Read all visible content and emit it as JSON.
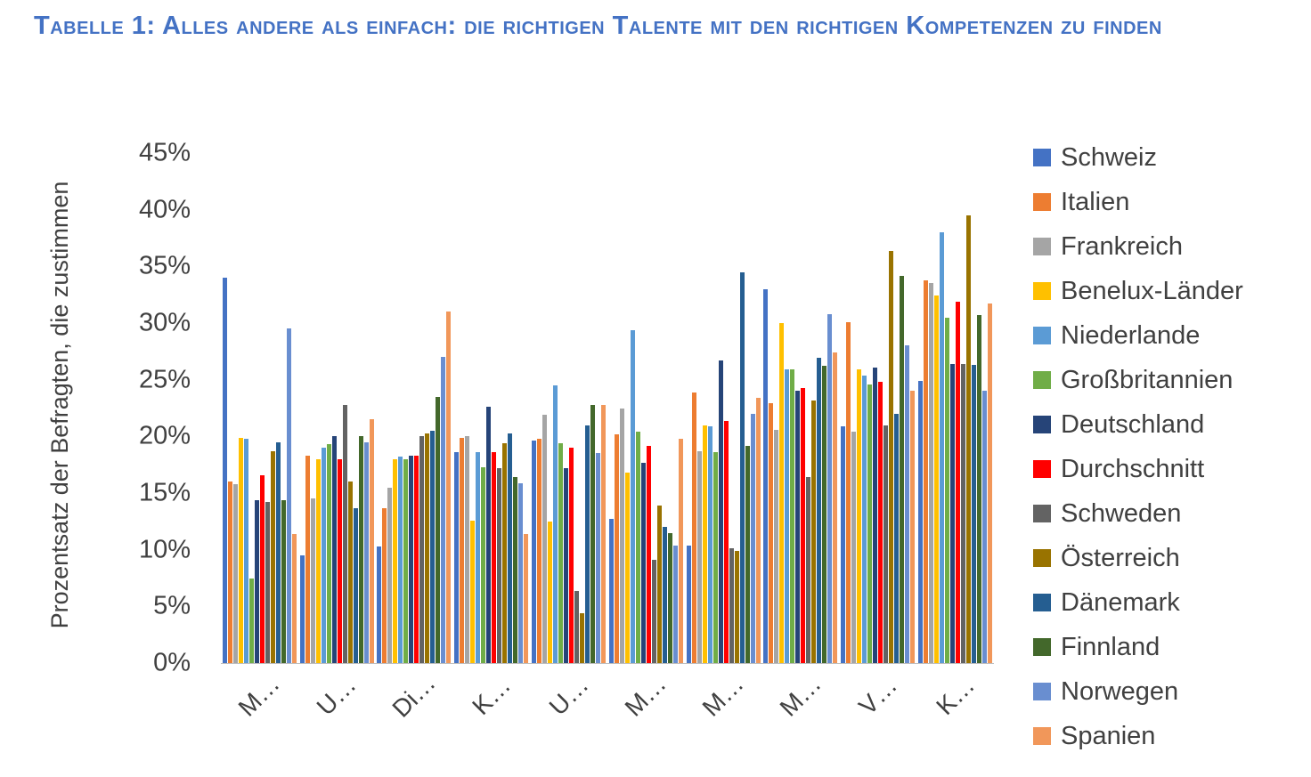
{
  "page_title": "Tabelle 1: Alles andere als einfach: die richtigen Talente mit den richtigen Kompetenzen zu finden",
  "chart_data": {
    "type": "bar",
    "title": "Tabelle 1: Alles andere als einfach: die richtigen Talente mit den richtigen Kompetenzen zu finden",
    "xlabel": "",
    "ylabel": "Prozentsatz der Befragten, die zustimmen",
    "ylim": [
      0,
      45
    ],
    "ytick_step": 5,
    "ytick_suffix": "%",
    "grid": false,
    "legend_position": "right",
    "categories": [
      "M…",
      "U…",
      "Di…",
      "K…",
      "U…",
      "M…",
      "M…",
      "M…",
      "V…",
      "K…"
    ],
    "series": [
      {
        "name": "Schweiz",
        "color": "#4472C4",
        "values": [
          34.0,
          9.5,
          10.3,
          18.6,
          19.6,
          12.7,
          10.4,
          33.0,
          20.9,
          24.9
        ]
      },
      {
        "name": "Italien",
        "color": "#ED7D31",
        "values": [
          16.0,
          18.3,
          13.7,
          19.9,
          19.8,
          20.2,
          23.9,
          22.9,
          30.1,
          33.8
        ]
      },
      {
        "name": "Frankreich",
        "color": "#A5A5A5",
        "values": [
          15.8,
          14.5,
          15.5,
          20.0,
          21.9,
          22.5,
          18.7,
          20.6,
          20.4,
          33.5
        ]
      },
      {
        "name": "Benelux-Länder",
        "color": "#FFC000",
        "values": [
          19.9,
          18.0,
          18.0,
          12.6,
          12.5,
          16.8,
          21.0,
          30.0,
          25.9,
          32.4
        ]
      },
      {
        "name": "Niederlande",
        "color": "#5B9BD5",
        "values": [
          19.8,
          19.0,
          18.2,
          18.6,
          24.5,
          29.4,
          20.9,
          25.9,
          25.4,
          38.0
        ]
      },
      {
        "name": "Großbritannien",
        "color": "#70AD47",
        "values": [
          7.5,
          19.3,
          18.0,
          17.3,
          19.4,
          20.4,
          18.6,
          25.9,
          24.6,
          30.5
        ]
      },
      {
        "name": "Deutschland",
        "color": "#264478",
        "values": [
          14.4,
          20.0,
          18.3,
          22.6,
          17.2,
          17.7,
          26.7,
          24.0,
          26.1,
          26.4
        ]
      },
      {
        "name": "Durchschnitt",
        "color": "#FF0000",
        "values": [
          16.6,
          18.0,
          18.3,
          18.6,
          19.0,
          19.2,
          21.4,
          24.3,
          24.8,
          31.9
        ]
      },
      {
        "name": "Schweden",
        "color": "#636363",
        "values": [
          14.2,
          22.8,
          20.0,
          17.2,
          6.4,
          9.1,
          10.1,
          16.4,
          21.0,
          26.4
        ]
      },
      {
        "name": "Österreich",
        "color": "#997300",
        "values": [
          18.7,
          16.0,
          20.3,
          19.4,
          4.4,
          13.9,
          9.9,
          23.2,
          36.4,
          39.5
        ]
      },
      {
        "name": "Dänemark",
        "color": "#255E91",
        "values": [
          19.5,
          13.7,
          20.5,
          20.3,
          21.0,
          12.0,
          34.5,
          26.9,
          22.0,
          26.3
        ]
      },
      {
        "name": "Finnland",
        "color": "#43682B",
        "values": [
          14.4,
          20.0,
          23.5,
          16.4,
          22.8,
          11.5,
          19.2,
          26.2,
          34.2,
          30.7
        ]
      },
      {
        "name": "Norwegen",
        "color": "#698ED0",
        "values": [
          29.5,
          19.5,
          27.0,
          15.9,
          18.5,
          10.4,
          22.0,
          30.8,
          28.0,
          24.0
        ]
      },
      {
        "name": "Spanien",
        "color": "#F1975A",
        "values": [
          11.4,
          21.5,
          31.0,
          11.4,
          22.8,
          19.8,
          23.4,
          27.4,
          24.0,
          31.7
        ]
      }
    ]
  }
}
